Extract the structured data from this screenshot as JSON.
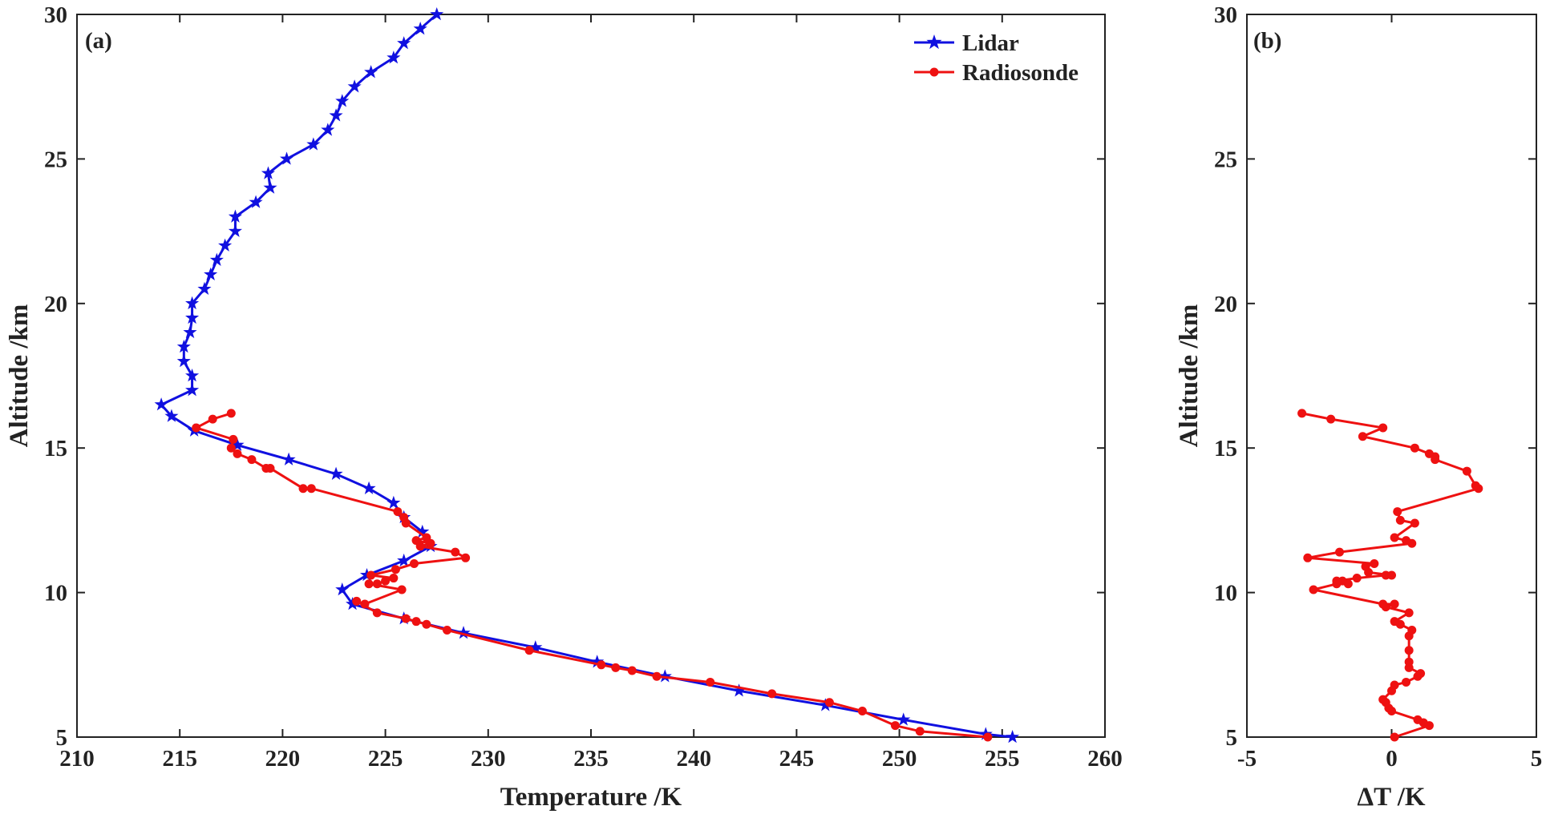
{
  "chart_data": [
    {
      "type": "line",
      "panel_label": "(a)",
      "title": "",
      "xlabel": "Temperature /K",
      "ylabel": "Altitude /km",
      "xlim": [
        210,
        260
      ],
      "ylim": [
        5,
        30
      ],
      "xticks": [
        "210",
        "215",
        "220",
        "225",
        "230",
        "235",
        "240",
        "245",
        "250",
        "255",
        "260"
      ],
      "yticks": [
        "5",
        "10",
        "15",
        "20",
        "25",
        "30"
      ],
      "grid": false,
      "legend": "top-right",
      "series": [
        {
          "name": "Lidar",
          "color": "#1010e0",
          "marker": "star",
          "points": [
            [
              255.5,
              5.0
            ],
            [
              254.2,
              5.1
            ],
            [
              250.2,
              5.6
            ],
            [
              246.4,
              6.1
            ],
            [
              242.2,
              6.6
            ],
            [
              238.6,
              7.1
            ],
            [
              235.3,
              7.6
            ],
            [
              232.3,
              8.1
            ],
            [
              228.8,
              8.6
            ],
            [
              225.9,
              9.1
            ],
            [
              223.4,
              9.6
            ],
            [
              222.9,
              10.1
            ],
            [
              224.1,
              10.6
            ],
            [
              225.9,
              11.1
            ],
            [
              227.2,
              11.6
            ],
            [
              226.8,
              12.1
            ],
            [
              225.9,
              12.6
            ],
            [
              225.4,
              13.1
            ],
            [
              224.2,
              13.6
            ],
            [
              222.6,
              14.1
            ],
            [
              220.3,
              14.6
            ],
            [
              217.8,
              15.1
            ],
            [
              215.7,
              15.6
            ],
            [
              214.6,
              16.1
            ],
            [
              214.1,
              16.5
            ],
            [
              215.6,
              17.0
            ],
            [
              215.6,
              17.5
            ],
            [
              215.2,
              18.0
            ],
            [
              215.2,
              18.5
            ],
            [
              215.5,
              19.0
            ],
            [
              215.6,
              19.5
            ],
            [
              215.6,
              20.0
            ],
            [
              216.2,
              20.5
            ],
            [
              216.5,
              21.0
            ],
            [
              216.8,
              21.5
            ],
            [
              217.2,
              22.0
            ],
            [
              217.7,
              22.5
            ],
            [
              217.7,
              23.0
            ],
            [
              218.7,
              23.5
            ],
            [
              219.4,
              24.0
            ],
            [
              219.3,
              24.5
            ],
            [
              220.2,
              25.0
            ],
            [
              221.5,
              25.5
            ],
            [
              222.2,
              26.0
            ],
            [
              222.6,
              26.5
            ],
            [
              222.9,
              27.0
            ],
            [
              223.5,
              27.5
            ],
            [
              224.3,
              28.0
            ],
            [
              225.4,
              28.5
            ],
            [
              225.9,
              29.0
            ],
            [
              226.7,
              29.5
            ],
            [
              227.5,
              30.0
            ]
          ]
        },
        {
          "name": "Radiosonde",
          "color": "#ee1111",
          "marker": "dot",
          "points": [
            [
              254.3,
              5.0
            ],
            [
              251.0,
              5.2
            ],
            [
              249.8,
              5.4
            ],
            [
              248.2,
              5.9
            ],
            [
              246.6,
              6.2
            ],
            [
              243.8,
              6.5
            ],
            [
              240.8,
              6.9
            ],
            [
              238.2,
              7.1
            ],
            [
              237.0,
              7.3
            ],
            [
              236.2,
              7.4
            ],
            [
              235.5,
              7.5
            ],
            [
              232.0,
              8.0
            ],
            [
              228.0,
              8.7
            ],
            [
              227.0,
              8.9
            ],
            [
              226.5,
              9.0
            ],
            [
              226.0,
              9.1
            ],
            [
              224.6,
              9.3
            ],
            [
              223.6,
              9.7
            ],
            [
              224.0,
              9.6
            ],
            [
              225.8,
              10.1
            ],
            [
              224.2,
              10.3
            ],
            [
              224.6,
              10.3
            ],
            [
              225.0,
              10.4
            ],
            [
              225.4,
              10.5
            ],
            [
              224.3,
              10.6
            ],
            [
              225.5,
              10.8
            ],
            [
              226.4,
              11.0
            ],
            [
              228.9,
              11.2
            ],
            [
              228.4,
              11.4
            ],
            [
              226.7,
              11.6
            ],
            [
              227.2,
              11.7
            ],
            [
              226.5,
              11.8
            ],
            [
              227.0,
              11.9
            ],
            [
              226.0,
              12.4
            ],
            [
              225.9,
              12.6
            ],
            [
              225.6,
              12.8
            ],
            [
              221.4,
              13.6
            ],
            [
              221.0,
              13.6
            ],
            [
              219.4,
              14.3
            ],
            [
              219.2,
              14.3
            ],
            [
              218.5,
              14.6
            ],
            [
              217.8,
              14.8
            ],
            [
              217.5,
              15.0
            ],
            [
              217.6,
              15.3
            ],
            [
              215.8,
              15.7
            ],
            [
              216.6,
              16.0
            ],
            [
              217.5,
              16.2
            ]
          ]
        }
      ]
    },
    {
      "type": "line",
      "panel_label": "(b)",
      "title": "",
      "xlabel": "ΔT /K",
      "ylabel": "Altitude /km",
      "xlim": [
        -5,
        5
      ],
      "ylim": [
        5,
        30
      ],
      "xticks": [
        "-5",
        "0",
        "5"
      ],
      "yticks": [
        "5",
        "10",
        "15",
        "20",
        "25",
        "30"
      ],
      "grid": false,
      "legend": "none",
      "series": [
        {
          "color": "#ee1111",
          "marker": "dot",
          "points": [
            [
              0.1,
              5.0
            ],
            [
              1.3,
              5.4
            ],
            [
              1.1,
              5.5
            ],
            [
              0.9,
              5.6
            ],
            [
              0.0,
              5.9
            ],
            [
              -0.1,
              6.0
            ],
            [
              -0.2,
              6.2
            ],
            [
              -0.3,
              6.3
            ],
            [
              0.0,
              6.6
            ],
            [
              0.1,
              6.8
            ],
            [
              0.5,
              6.9
            ],
            [
              0.9,
              7.1
            ],
            [
              1.0,
              7.2
            ],
            [
              0.6,
              7.4
            ],
            [
              0.6,
              7.6
            ],
            [
              0.6,
              8.0
            ],
            [
              0.6,
              8.5
            ],
            [
              0.7,
              8.7
            ],
            [
              0.3,
              8.9
            ],
            [
              0.1,
              9.0
            ],
            [
              0.6,
              9.3
            ],
            [
              -0.2,
              9.5
            ],
            [
              0.1,
              9.6
            ],
            [
              -0.3,
              9.6
            ],
            [
              -2.7,
              10.1
            ],
            [
              -1.9,
              10.3
            ],
            [
              -1.5,
              10.3
            ],
            [
              -1.7,
              10.4
            ],
            [
              -1.9,
              10.4
            ],
            [
              -1.2,
              10.5
            ],
            [
              -0.2,
              10.6
            ],
            [
              0.0,
              10.6
            ],
            [
              -0.8,
              10.7
            ],
            [
              -0.9,
              10.9
            ],
            [
              -0.6,
              11.0
            ],
            [
              -2.9,
              11.2
            ],
            [
              -1.8,
              11.4
            ],
            [
              0.7,
              11.7
            ],
            [
              0.5,
              11.8
            ],
            [
              0.1,
              11.9
            ],
            [
              0.8,
              12.4
            ],
            [
              0.3,
              12.5
            ],
            [
              0.2,
              12.8
            ],
            [
              3.0,
              13.6
            ],
            [
              2.9,
              13.7
            ],
            [
              2.6,
              14.2
            ],
            [
              1.5,
              14.6
            ],
            [
              1.5,
              14.7
            ],
            [
              1.3,
              14.8
            ],
            [
              0.8,
              15.0
            ],
            [
              -1.0,
              15.4
            ],
            [
              -0.3,
              15.7
            ],
            [
              -2.1,
              16.0
            ],
            [
              -3.1,
              16.2
            ]
          ]
        }
      ]
    }
  ]
}
